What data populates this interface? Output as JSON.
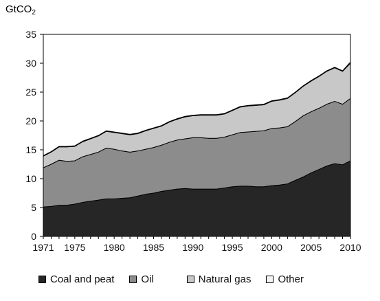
{
  "chart_data": {
    "type": "area",
    "stacked": true,
    "unit_label": "GtCO",
    "unit_label_sub": "2",
    "title": "",
    "xlabel": "",
    "ylabel": "",
    "xlim": [
      1971,
      2010
    ],
    "ylim": [
      0,
      35
    ],
    "x_ticks": [
      "1971",
      "1975",
      "1980",
      "1985",
      "1990",
      "1995",
      "2000",
      "2005",
      "2010"
    ],
    "y_ticks": [
      "0",
      "5",
      "10",
      "15",
      "20",
      "25",
      "30",
      "35"
    ],
    "grid": false,
    "legend_placement": "bottom",
    "x": [
      1971,
      1972,
      1973,
      1974,
      1975,
      1976,
      1977,
      1978,
      1979,
      1980,
      1981,
      1982,
      1983,
      1984,
      1985,
      1986,
      1987,
      1988,
      1989,
      1990,
      1991,
      1992,
      1993,
      1994,
      1995,
      1996,
      1997,
      1998,
      1999,
      2000,
      2001,
      2002,
      2003,
      2004,
      2005,
      2006,
      2007,
      2008,
      2009,
      2010
    ],
    "series": [
      {
        "name": "Coal and peat",
        "color": "#262626",
        "values": [
          5.1,
          5.2,
          5.4,
          5.4,
          5.6,
          5.9,
          6.1,
          6.3,
          6.5,
          6.5,
          6.6,
          6.7,
          7.0,
          7.3,
          7.5,
          7.8,
          8.0,
          8.2,
          8.3,
          8.2,
          8.2,
          8.2,
          8.2,
          8.4,
          8.6,
          8.7,
          8.7,
          8.6,
          8.6,
          8.8,
          8.9,
          9.1,
          9.7,
          10.3,
          11.0,
          11.6,
          12.2,
          12.6,
          12.4,
          13.1
        ]
      },
      {
        "name": "Oil",
        "color": "#8c8c8c",
        "values": [
          6.8,
          7.3,
          7.8,
          7.6,
          7.5,
          7.9,
          8.1,
          8.3,
          8.8,
          8.6,
          8.2,
          7.9,
          7.8,
          7.8,
          7.9,
          8.0,
          8.3,
          8.5,
          8.6,
          8.9,
          8.9,
          8.8,
          8.8,
          8.8,
          9.0,
          9.3,
          9.4,
          9.6,
          9.7,
          9.9,
          9.9,
          9.9,
          10.2,
          10.6,
          10.6,
          10.6,
          10.7,
          10.8,
          10.5,
          10.8
        ]
      },
      {
        "name": "Natural gas",
        "color": "#c8c8c8",
        "values": [
          2.0,
          2.1,
          2.3,
          2.5,
          2.5,
          2.6,
          2.7,
          2.8,
          2.9,
          2.9,
          3.0,
          3.0,
          3.0,
          3.2,
          3.3,
          3.3,
          3.5,
          3.6,
          3.8,
          3.8,
          3.9,
          4.0,
          4.0,
          4.0,
          4.2,
          4.4,
          4.5,
          4.5,
          4.5,
          4.7,
          4.8,
          4.9,
          5.0,
          5.1,
          5.3,
          5.5,
          5.7,
          5.8,
          5.7,
          6.1
        ]
      },
      {
        "name": "Other",
        "color": "#f4f4f4",
        "values": [
          0.1,
          0.1,
          0.1,
          0.1,
          0.1,
          0.1,
          0.1,
          0.1,
          0.1,
          0.1,
          0.1,
          0.1,
          0.1,
          0.1,
          0.1,
          0.1,
          0.1,
          0.1,
          0.1,
          0.1,
          0.1,
          0.1,
          0.1,
          0.1,
          0.1,
          0.1,
          0.1,
          0.1,
          0.1,
          0.1,
          0.1,
          0.1,
          0.1,
          0.1,
          0.1,
          0.1,
          0.1,
          0.1,
          0.1,
          0.2
        ]
      }
    ]
  }
}
